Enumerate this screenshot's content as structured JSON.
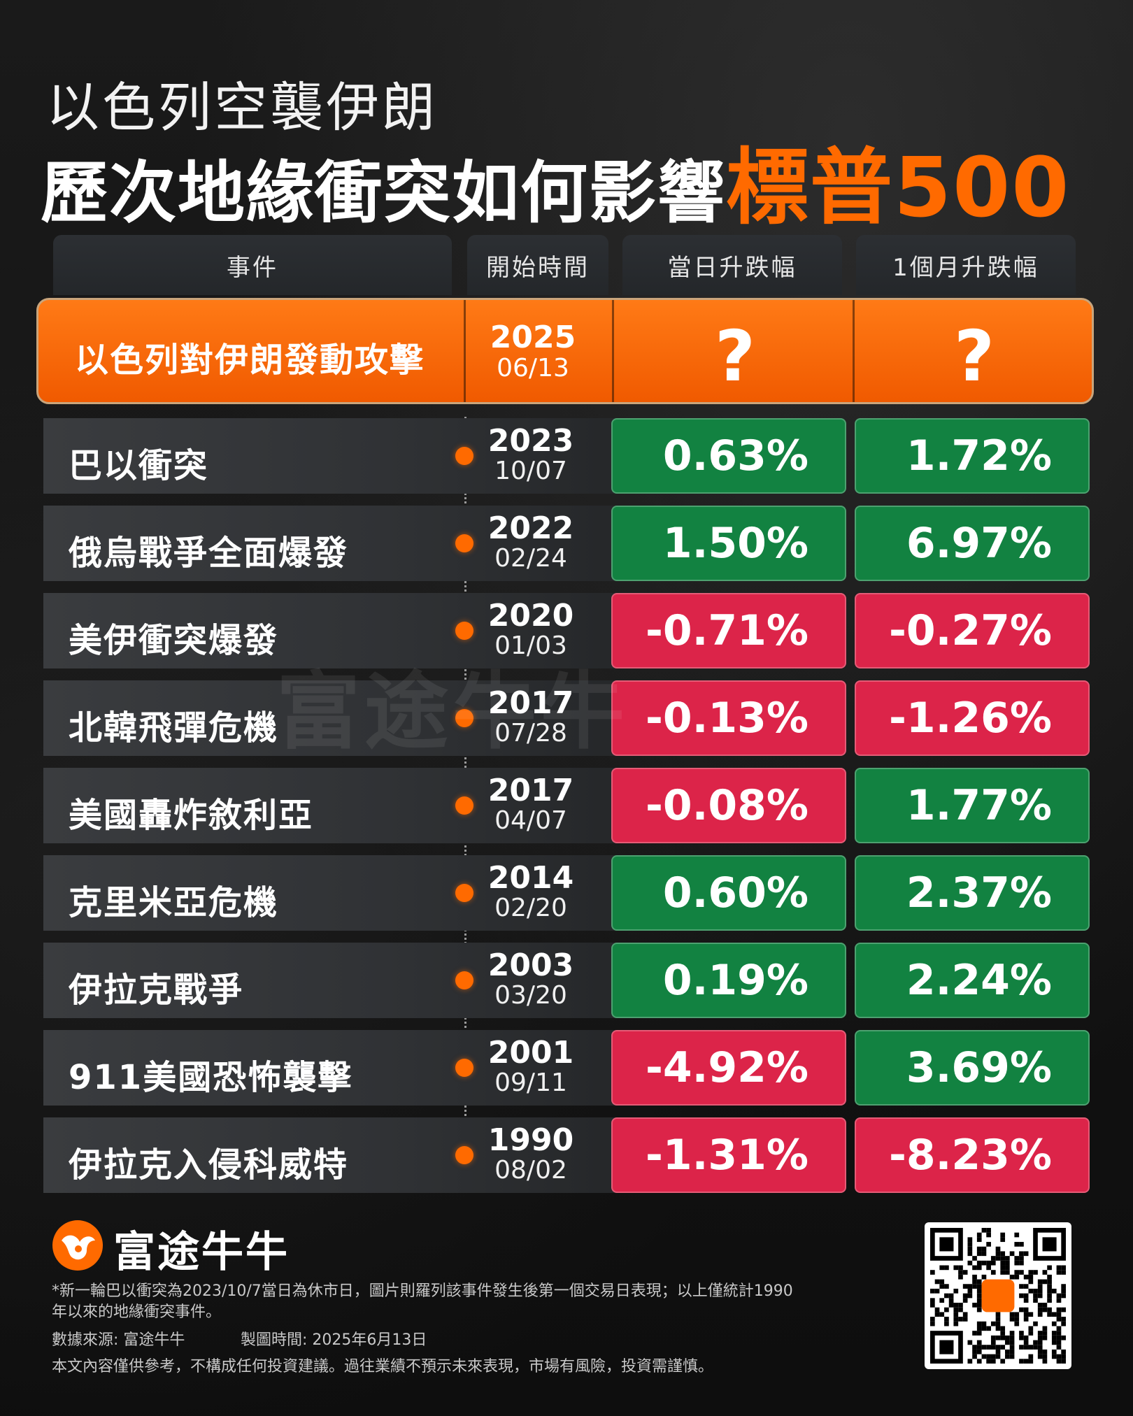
{
  "title": {
    "line1": "以色列空襲伊朗",
    "line2_prefix": "歷次地緣衝突如何影響",
    "line2_highlight": "標普500"
  },
  "colors": {
    "accent": "#ff6a00",
    "up": "#128241",
    "down": "#dc2449"
  },
  "chart_data": {
    "type": "table",
    "columns": [
      "事件",
      "開始時間",
      "當日升跌幅",
      "1個月升跌幅"
    ],
    "highlight_row": {
      "event": "以色列對伊朗發動攻擊",
      "year": "2025",
      "md": "06/13",
      "day_change": "?",
      "month_change": "?"
    },
    "rows": [
      {
        "event": "巴以衝突",
        "year": "2023",
        "md": "10/07",
        "day": 0.63,
        "day_text": "0.63%",
        "month": 1.72,
        "month_text": "1.72%"
      },
      {
        "event": "俄烏戰爭全面爆發",
        "year": "2022",
        "md": "02/24",
        "day": 1.5,
        "day_text": "1.50%",
        "month": 6.97,
        "month_text": "6.97%"
      },
      {
        "event": "美伊衝突爆發",
        "year": "2020",
        "md": "01/03",
        "day": -0.71,
        "day_text": "-0.71%",
        "month": -0.27,
        "month_text": "-0.27%"
      },
      {
        "event": "北韓飛彈危機",
        "year": "2017",
        "md": "07/28",
        "day": -0.13,
        "day_text": "-0.13%",
        "month": -1.26,
        "month_text": "-1.26%"
      },
      {
        "event": "美國轟炸敘利亞",
        "year": "2017",
        "md": "04/07",
        "day": -0.08,
        "day_text": "-0.08%",
        "month": 1.77,
        "month_text": "1.77%"
      },
      {
        "event": "克里米亞危機",
        "year": "2014",
        "md": "02/20",
        "day": 0.6,
        "day_text": "0.60%",
        "month": 2.37,
        "month_text": "2.37%"
      },
      {
        "event": "伊拉克戰爭",
        "year": "2003",
        "md": "03/20",
        "day": 0.19,
        "day_text": "0.19%",
        "month": 2.24,
        "month_text": "2.24%"
      },
      {
        "event": "911美國恐怖襲擊",
        "year": "2001",
        "md": "09/11",
        "day": -4.92,
        "day_text": "-4.92%",
        "month": 3.69,
        "month_text": "3.69%"
      },
      {
        "event": "伊拉克入侵科威特",
        "year": "1990",
        "md": "08/02",
        "day": -1.31,
        "day_text": "-1.31%",
        "month": -8.23,
        "month_text": "-8.23%"
      }
    ]
  },
  "watermark": "富途牛牛",
  "footer": {
    "brand": "富途牛牛",
    "note": "*新一輪巴以衝突為2023/10/7當日為休市日，圖片則羅列該事件發生後第一個交易日表現；以上僅統計1990年以來的地緣衝突事件。",
    "source": "數據來源: 富途牛牛",
    "made": "製圖時間: 2025年6月13日",
    "disclaimer": "本文內容僅供參考，不構成任何投資建議。過往業績不預示未來表現，市場有風險，投資需謹慎。"
  },
  "icons": {
    "brand_logo": "bull-logo-icon",
    "qr": "qr-code-icon"
  }
}
